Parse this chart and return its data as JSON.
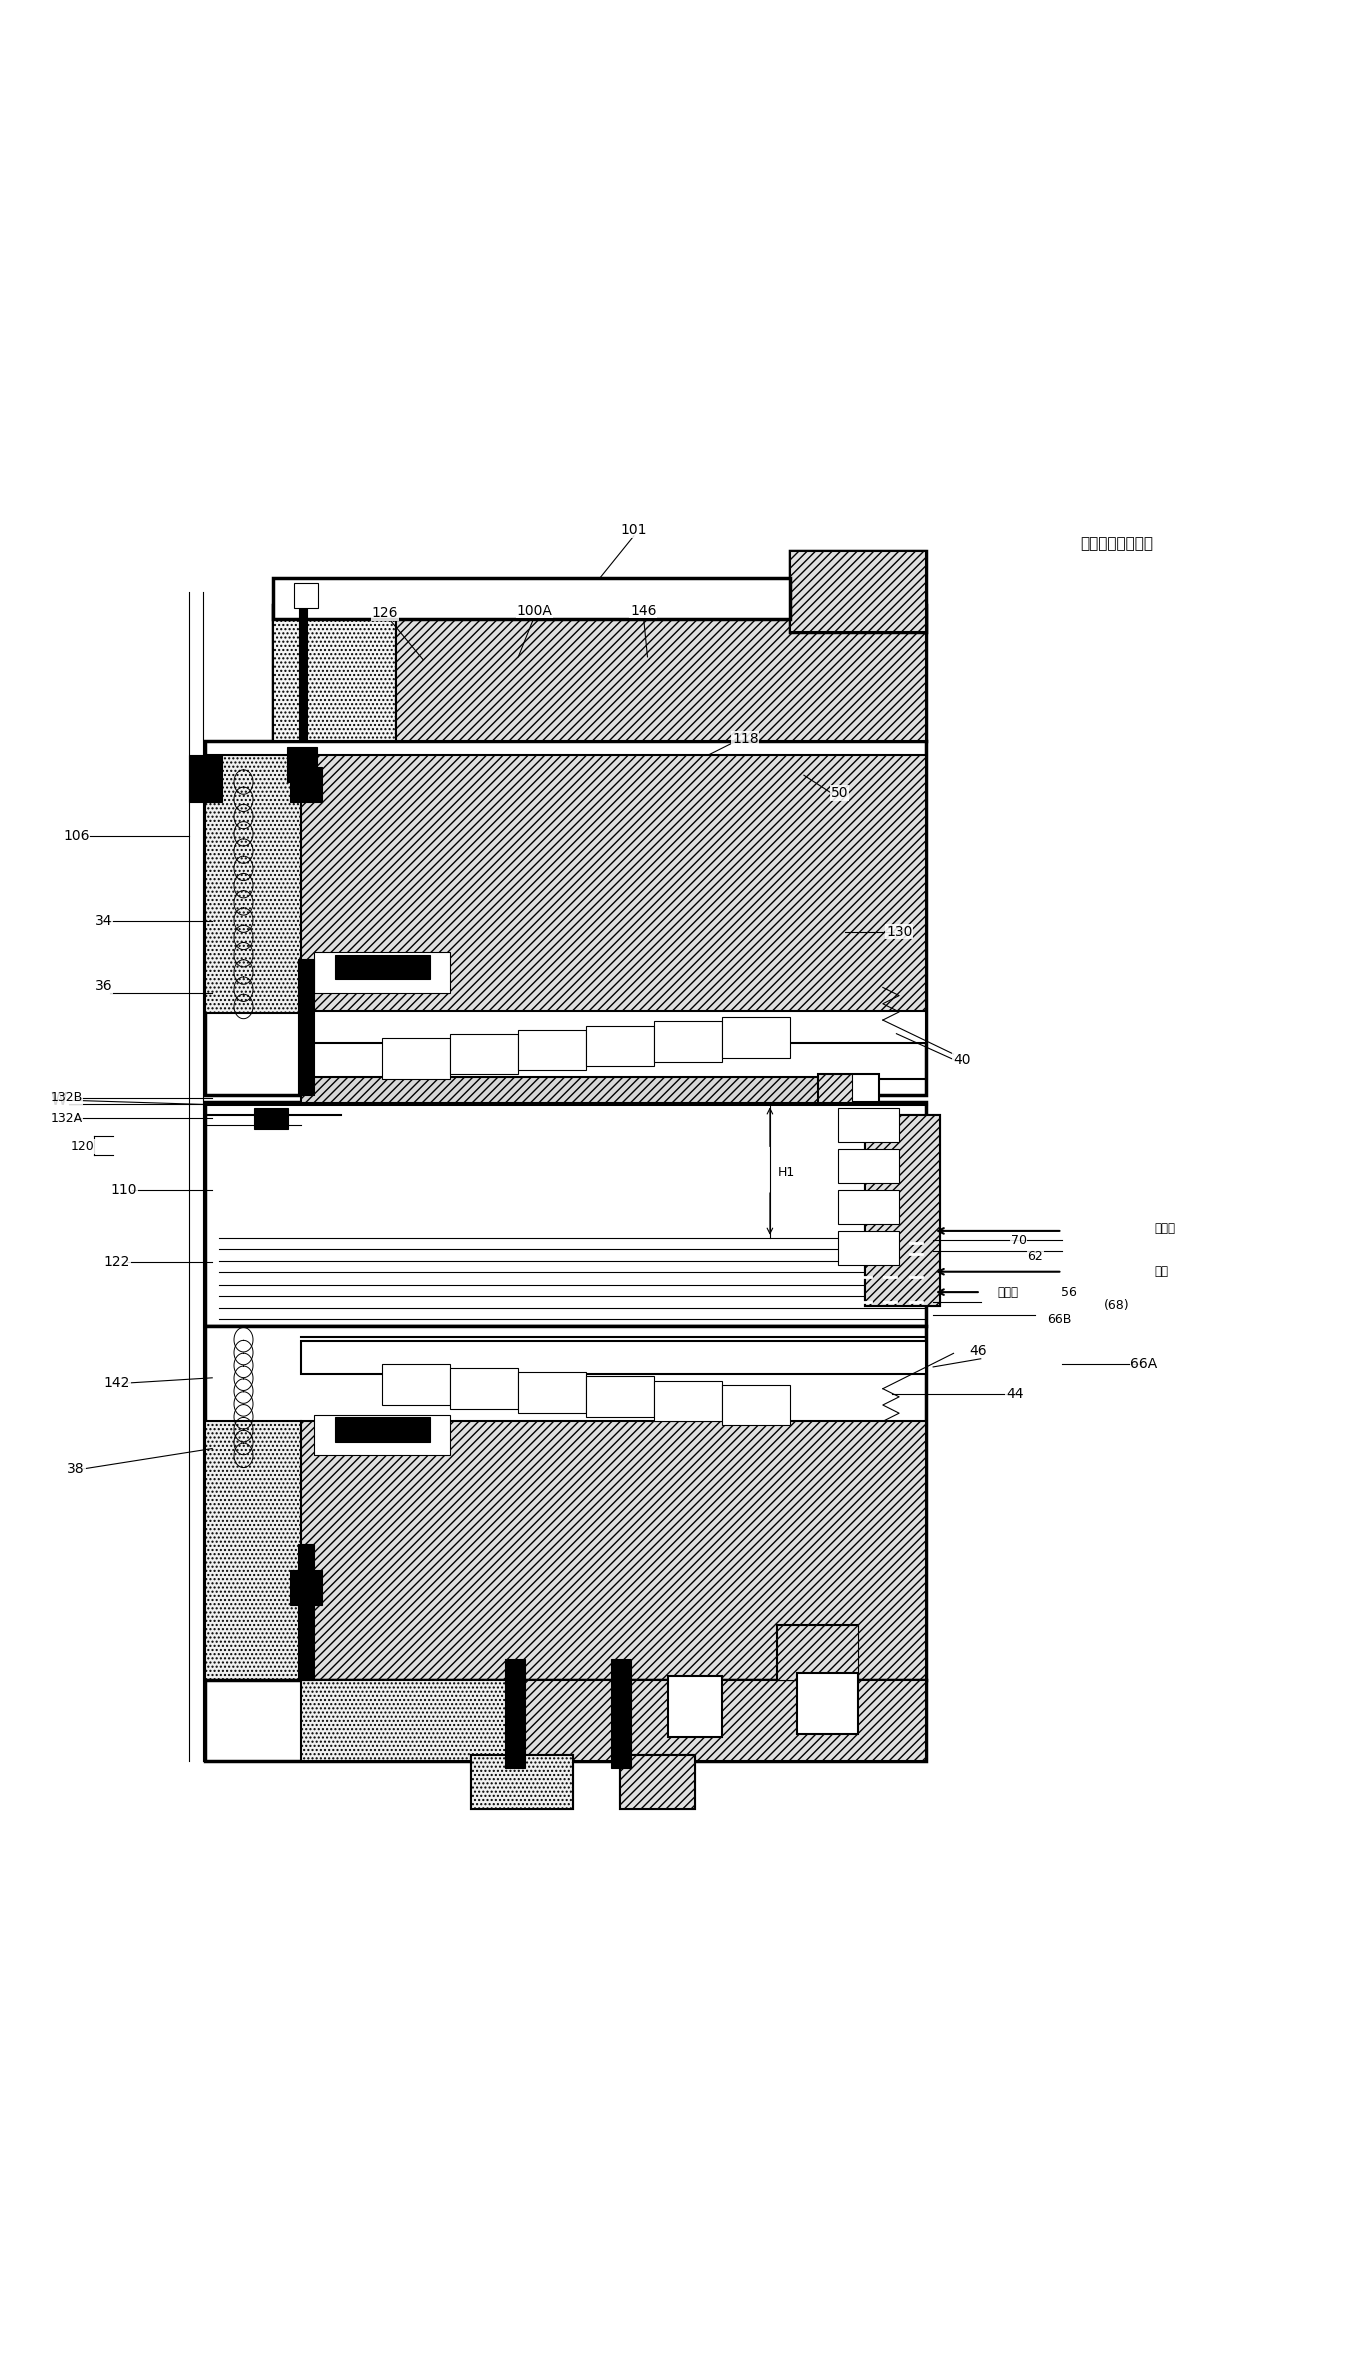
{
  "title": "",
  "background_color": "#ffffff",
  "line_color": "#000000",
  "figsize": [
    13.63,
    23.53
  ],
  "dpi": 100,
  "caption": "「一般変変实例」",
  "refrigerant_label_1": "冷却剤",
  "refrigerant_label_2": "冷却剤",
  "gas_label": "气体"
}
